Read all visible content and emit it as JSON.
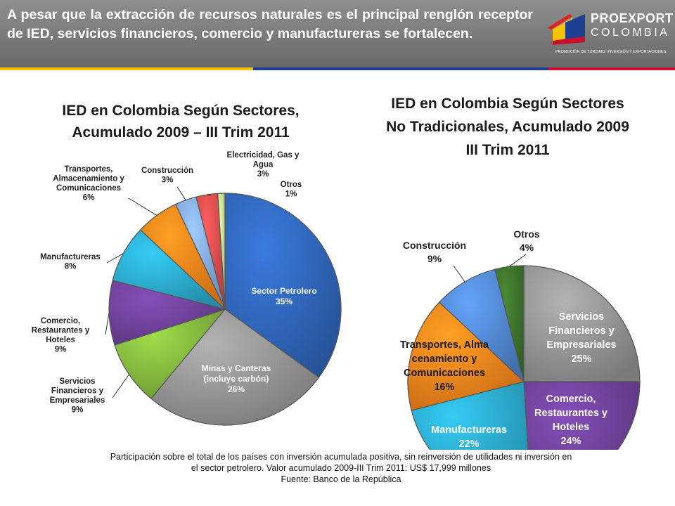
{
  "header": {
    "headline": "A pesar que la extracción de recursos naturales es el principal renglón receptor de IED, servicios financieros, comercio y manufactureras se fortalecen.",
    "logo": {
      "name_line1": "PROEXPORT",
      "name_line2": "COLOMBIA",
      "tagline": "PROMOCIÓN DE TURISMO, INVERSIÓN Y EXPORTACIONES."
    }
  },
  "colors": {
    "header_bg": "#7b7b7b",
    "stripe_yellow": "#f5c200",
    "stripe_blue": "#1d3f94",
    "stripe_red": "#c8102e"
  },
  "chart_data": [
    {
      "type": "pie",
      "title_lines": [
        "IED en Colombia Según Sectores,",
        "Acumulado 2009 – III Trim 2011"
      ],
      "categories": [
        "Sector Petrolero",
        "Minas y Canteras (incluye carbón)",
        "Servicios Financieros y Empresariales",
        "Comercio, Restaurantes y Hoteles",
        "Manufactureras",
        "Transportes, Almacenamiento y Comunicaciones",
        "Construcción",
        "Electricidad, Gas y Agua",
        "Otros"
      ],
      "values": [
        35,
        26,
        9,
        9,
        8,
        6,
        3,
        3,
        1
      ],
      "value_labels": [
        "35%",
        "26%",
        "9%",
        "9%",
        "8%",
        "6%",
        "3%",
        "3%",
        "1%"
      ],
      "label_lines": [
        [
          "Sector Petrolero"
        ],
        [
          "Minas y Canteras",
          "(incluye carbón)"
        ],
        [
          "Servicios",
          "Financieros y",
          "Empresariales"
        ],
        [
          "Comercio,",
          "Restaurantes y",
          "Hoteles"
        ],
        [
          "Manufactureras"
        ],
        [
          "Transportes,",
          "Almacenamiento y",
          "Comunicaciones"
        ],
        [
          "Construcción"
        ],
        [
          "Electricidad, Gas y",
          "Agua"
        ],
        [
          "Otros"
        ]
      ],
      "colors": [
        "#2e62b2",
        "#8f8f8f",
        "#7fb13c",
        "#6a3f94",
        "#2aa3c4",
        "#f07f1b",
        "#7ea3d8",
        "#d84a4a",
        "#bdd68a"
      ]
    },
    {
      "type": "pie",
      "title_lines": [
        "IED en Colombia Según Sectores",
        "No Tradicionales, Acumulado 2009",
        "III Trim 2011"
      ],
      "categories": [
        "Servicios Financieros y Empresariales",
        "Comercio, Restaurantes y Hoteles",
        "Manufactureras",
        "Transportes, Almacenamiento y Comunicaciones",
        "Construcción",
        "Otros"
      ],
      "values": [
        25,
        24,
        22,
        16,
        9,
        4
      ],
      "value_labels": [
        "25%",
        "24%",
        "22%",
        "16%",
        "9%",
        "4%"
      ],
      "label_lines": [
        [
          "Servicios",
          "Financieros y",
          "Empresariales"
        ],
        [
          "Comercio,",
          "Restaurantes y",
          "Hoteles"
        ],
        [
          "Manufactureras"
        ],
        [
          "Transportes, Alma",
          "cenamiento y",
          "Comunicaciones"
        ],
        [
          "Construcción"
        ],
        [
          "Otros"
        ]
      ],
      "colors": [
        "#8f8f8f",
        "#6a3f94",
        "#2aa3c4",
        "#f07f1b",
        "#4f83c9",
        "#3b6e2a"
      ]
    }
  ],
  "footnote": {
    "line1": "Participación sobre el total de los países con inversión acumulada positiva, sin reinversión de utilidades  ni inversión en",
    "line2": "el sector petrolero.  Valor  acumulado 2009-III Trim 2011: US$ 17,999 millones",
    "line3": "Fuente: Banco de la República"
  }
}
